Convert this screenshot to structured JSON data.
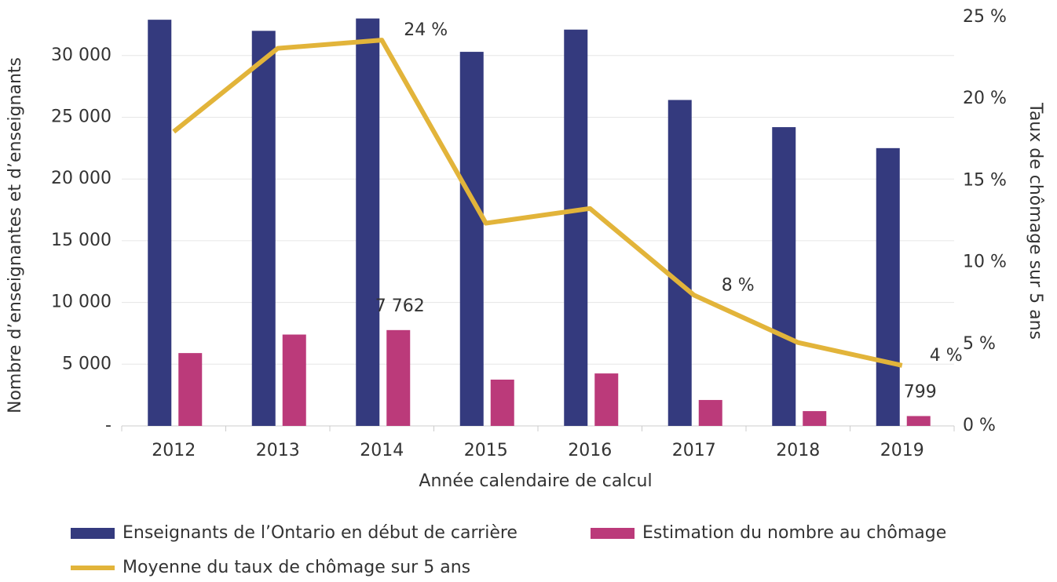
{
  "chart_data": {
    "type": "bar_line",
    "x_label": "Année calendaire de calcul",
    "y_label": "Nombre d’enseignantes et d’enseignants",
    "y2_label": "Taux de chômage sur 5 ans",
    "categories": [
      "2012",
      "2013",
      "2014",
      "2015",
      "2016",
      "2017",
      "2018",
      "2019"
    ],
    "series": [
      {
        "name": "Enseignants de l’Ontario en début de carrière",
        "color": "#343a7e",
        "type": "bar",
        "values": [
          32900,
          32000,
          33000,
          30300,
          32100,
          26400,
          24200,
          22500
        ]
      },
      {
        "name": "Estimation du nombre au chômage",
        "color": "#bb3a7a",
        "type": "bar",
        "values": [
          5900,
          7400,
          7762,
          3750,
          4250,
          2100,
          1200,
          799
        ],
        "value_labels": [
          null,
          null,
          "7 762",
          null,
          null,
          null,
          null,
          "799"
        ]
      },
      {
        "name": "Moyenne du taux de chômage sur 5 ans",
        "color": "#e2b43a",
        "type": "line",
        "axis": "y2",
        "values": [
          18.0,
          23.1,
          23.6,
          12.4,
          13.3,
          8.0,
          5.1,
          3.7
        ],
        "value_labels": [
          null,
          null,
          "24 %",
          null,
          null,
          "8 %",
          null,
          "4 %"
        ]
      }
    ],
    "ylim": [
      0,
      33100
    ],
    "yticks": [
      {
        "value": 0,
        "label": "-"
      },
      {
        "value": 5000,
        "label": "5 000"
      },
      {
        "value": 10000,
        "label": "10 000"
      },
      {
        "value": 15000,
        "label": "15 000"
      },
      {
        "value": 20000,
        "label": "20 000"
      },
      {
        "value": 25000,
        "label": "25 000"
      },
      {
        "value": 30000,
        "label": "30 000"
      }
    ],
    "y2lim": [
      0,
      25
    ],
    "y2ticks": [
      {
        "value": 0,
        "label": "0 %"
      },
      {
        "value": 5,
        "label": "5 %"
      },
      {
        "value": 10,
        "label": "10 %"
      },
      {
        "value": 15,
        "label": "15 %"
      },
      {
        "value": 20,
        "label": "20 %"
      },
      {
        "value": 25,
        "label": "25 %"
      }
    ],
    "grid": true
  }
}
